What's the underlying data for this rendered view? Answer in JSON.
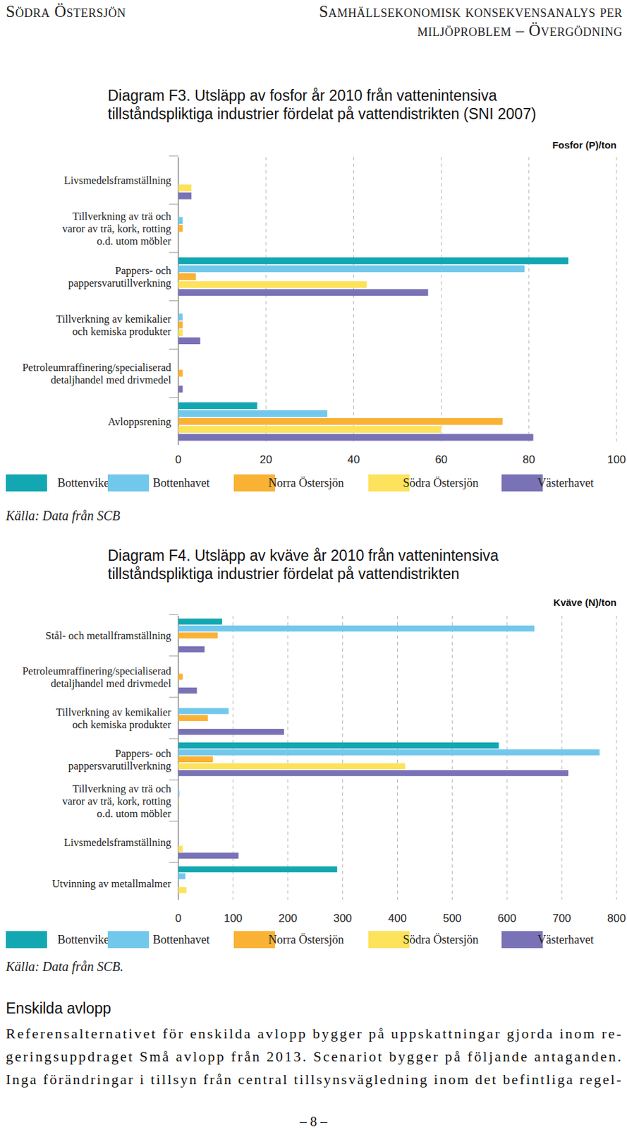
{
  "header": {
    "left": "Södra Östersjön",
    "right": [
      "Samhällsekonomisk konsekvensanalys per",
      "miljöproblem – Övergödning"
    ]
  },
  "chart_data": [
    {
      "type": "bar",
      "orientation": "horizontal",
      "title": "Diagram F3. Utsläpp av fosfor år 2010 från vattenintensiva\ntillståndspliktiga industrier fördelat på vattendistrikten (SNI 2007)",
      "x_label": "Fosfor (P)/ton",
      "categories": [
        "Livsmedelsframställning",
        "Tillverkning av trä och\nvaror av trä, kork, rotting\no.d. utom möbler",
        "Pappers- och\npappersvarutillverkning",
        "Tillverkning av kemikalier\noch kemiska produkter",
        "Petroleumraffinering/specialiserad\ndetaljhandel med drivmedel",
        "Avloppsrening"
      ],
      "series": [
        {
          "name": "Bottenviken",
          "color": "#12a7b1",
          "values": [
            null,
            null,
            89,
            null,
            null,
            18
          ]
        },
        {
          "name": "Bottenhavet",
          "color": "#72c8ec",
          "values": [
            null,
            1,
            79,
            1,
            null,
            34
          ]
        },
        {
          "name": "Norra Östersjön",
          "color": "#f9b234",
          "values": [
            null,
            1,
            4,
            1,
            1,
            74
          ]
        },
        {
          "name": "Södra Östersjön",
          "color": "#fde25c",
          "values": [
            3,
            null,
            43,
            1,
            null,
            60
          ]
        },
        {
          "name": "Västerhavet",
          "color": "#7a72b6",
          "values": [
            3,
            null,
            57,
            5,
            1,
            81
          ]
        }
      ],
      "xlim": [
        0,
        100
      ],
      "xticks": [
        0,
        20,
        40,
        60,
        80,
        100
      ],
      "grid": true,
      "legend": "bottom",
      "source": "Källa: Data från SCB"
    },
    {
      "type": "bar",
      "orientation": "horizontal",
      "title": "Diagram F4. Utsläpp av kväve år 2010 från vattenintensiva\ntillståndspliktiga industrier fördelat på vattendistrikten",
      "x_label": "Kväve (N)/ton",
      "categories": [
        "Stål- och metallframställning",
        "Petroleumraffinering/specialiserad\ndetaljhandel med drivmedel",
        "Tillverkning av kemikalier\noch kemiska produkter",
        "Pappers- och\npappersvarutillverkning",
        "Tillverkning av trä och\nvaror av trä, kork, rotting\no.d. utom möbler",
        "Livsmedelsframställning",
        "Utvinning av metallmalmer"
      ],
      "series": [
        {
          "name": "Bottenviken",
          "color": "#12a7b1",
          "values": [
            80,
            null,
            null,
            585,
            null,
            null,
            290
          ]
        },
        {
          "name": "Bottenhavet",
          "color": "#72c8ec",
          "values": [
            650,
            null,
            92,
            769,
            2,
            null,
            13
          ]
        },
        {
          "name": "Norra Östersjön",
          "color": "#f9b234",
          "values": [
            72,
            8,
            54,
            63,
            1,
            null,
            null
          ]
        },
        {
          "name": "Södra Östersjön",
          "color": "#fde25c",
          "values": [
            null,
            null,
            null,
            414,
            null,
            8,
            15
          ]
        },
        {
          "name": "Västerhavet",
          "color": "#7a72b6",
          "values": [
            48,
            34,
            193,
            712,
            null,
            110,
            null
          ]
        }
      ],
      "xlim": [
        0,
        800
      ],
      "xticks": [
        0,
        100,
        200,
        300,
        400,
        500,
        600,
        700,
        800
      ],
      "grid": true,
      "legend": "bottom",
      "source": "Källa: Data från SCB."
    }
  ],
  "section": {
    "heading": "Enskilda avlopp",
    "lines": [
      "Referensalternativet för enskilda avlopp bygger på uppskattningar gjorda inom re-",
      "geringsuppdraget Små avlopp från 2013. Scenariot bygger på följande antaganden.",
      "Inga förändringar i tillsyn från central tillsynsvägledning inom det befintliga regel-"
    ]
  },
  "page_number": "– 8 –"
}
